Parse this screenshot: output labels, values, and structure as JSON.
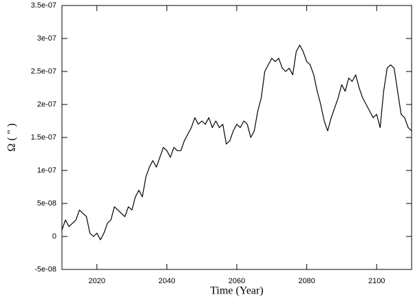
{
  "chart_data": {
    "type": "line",
    "xlabel": "Time (Year)",
    "ylabel": "Ω ( \" )",
    "xlim": [
      2010,
      2110
    ],
    "xticks": [
      2020,
      2040,
      2060,
      2080,
      2100
    ],
    "ylim": [
      -5e-08,
      3.5e-07
    ],
    "yticks": [
      {
        "value": -5e-08,
        "label": "-5e-08"
      },
      0,
      {
        "value": 5e-08,
        "label": "5e-08"
      },
      {
        "value": 1e-07,
        "label": "1e-07"
      },
      {
        "value": 1.5e-07,
        "label": "1.5e-07"
      },
      {
        "value": 2e-07,
        "label": "2e-07"
      },
      {
        "value": 2.5e-07,
        "label": "2.5e-07"
      },
      {
        "value": 3e-07,
        "label": "3e-07"
      },
      {
        "value": 3.5e-07,
        "label": "3.5e-07"
      }
    ],
    "grid": false,
    "x": [
      2010,
      2011,
      2012,
      2013,
      2014,
      2015,
      2016,
      2017,
      2018,
      2019,
      2020,
      2021,
      2022,
      2023,
      2024,
      2025,
      2026,
      2027,
      2028,
      2029,
      2030,
      2031,
      2032,
      2033,
      2034,
      2035,
      2036,
      2037,
      2038,
      2039,
      2040,
      2041,
      2042,
      2043,
      2044,
      2045,
      2046,
      2047,
      2048,
      2049,
      2050,
      2051,
      2052,
      2053,
      2054,
      2055,
      2056,
      2057,
      2058,
      2059,
      2060,
      2061,
      2062,
      2063,
      2064,
      2065,
      2066,
      2067,
      2068,
      2069,
      2070,
      2071,
      2072,
      2073,
      2074,
      2075,
      2076,
      2077,
      2078,
      2079,
      2080,
      2081,
      2082,
      2083,
      2084,
      2085,
      2086,
      2087,
      2088,
      2089,
      2090,
      2091,
      2092,
      2093,
      2094,
      2095,
      2096,
      2097,
      2098,
      2099,
      2100,
      2101,
      2102,
      2103,
      2104,
      2105,
      2106,
      2107,
      2108,
      2109,
      2110
    ],
    "series": [
      {
        "color": "#000000",
        "values": [
          1e-08,
          2.5e-08,
          1.5e-08,
          2e-08,
          2.5e-08,
          4e-08,
          3.5e-08,
          3e-08,
          5e-09,
          0,
          5e-09,
          -5e-09,
          5e-09,
          2e-08,
          2.5e-08,
          4.5e-08,
          4e-08,
          3.5e-08,
          3e-08,
          4.5e-08,
          4e-08,
          6e-08,
          7e-08,
          6e-08,
          9e-08,
          1.05e-07,
          1.15e-07,
          1.05e-07,
          1.2e-07,
          1.35e-07,
          1.3e-07,
          1.2e-07,
          1.35e-07,
          1.3e-07,
          1.3e-07,
          1.45e-07,
          1.55e-07,
          1.65e-07,
          1.8e-07,
          1.7e-07,
          1.75e-07,
          1.7e-07,
          1.8e-07,
          1.65e-07,
          1.75e-07,
          1.65e-07,
          1.7e-07,
          1.4e-07,
          1.45e-07,
          1.6e-07,
          1.7e-07,
          1.65e-07,
          1.75e-07,
          1.7e-07,
          1.5e-07,
          1.6e-07,
          1.9e-07,
          2.1e-07,
          2.5e-07,
          2.6e-07,
          2.7e-07,
          2.65e-07,
          2.7e-07,
          2.55e-07,
          2.5e-07,
          2.55e-07,
          2.45e-07,
          2.8e-07,
          2.9e-07,
          2.8e-07,
          2.65e-07,
          2.6e-07,
          2.45e-07,
          2.2e-07,
          2e-07,
          1.75e-07,
          1.6e-07,
          1.8e-07,
          1.95e-07,
          2.1e-07,
          2.3e-07,
          2.2e-07,
          2.4e-07,
          2.35e-07,
          2.45e-07,
          2.25e-07,
          2.1e-07,
          2e-07,
          1.9e-07,
          1.8e-07,
          1.85e-07,
          1.65e-07,
          2.2e-07,
          2.55e-07,
          2.6e-07,
          2.55e-07,
          2.2e-07,
          1.85e-07,
          1.8e-07,
          1.65e-07,
          1.6e-07
        ]
      }
    ]
  }
}
